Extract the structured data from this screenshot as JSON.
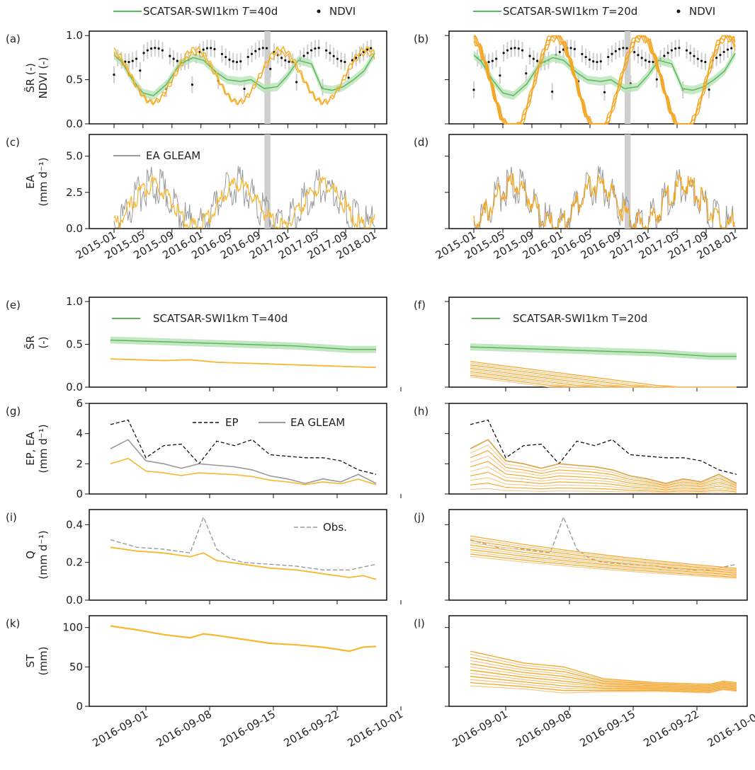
{
  "colors": {
    "green": "#5cb85c",
    "green_band": "#b9e3b9",
    "orange": "#f5a623",
    "yellow": "#f7b72e",
    "light_orange": "#f7c98a",
    "gray": "#9a9a9a",
    "gray_light": "#cfcfcf",
    "black": "#111111"
  },
  "legends": {
    "top_left": {
      "line_label": "SCATSAR-SWI1km",
      "T_label": "T",
      "T_value": "=40d",
      "dot_label": "NDVI"
    },
    "top_right": {
      "line_label": "SCATSAR-SWI1km",
      "T_label": "T",
      "T_value": "=20d",
      "dot_label": "NDVI"
    },
    "e_legend": "SCATSAR-SWI1km T=40d",
    "f_legend": "SCATSAR-SWI1km T=20d",
    "c_legend": "E_A GLEAM",
    "g_ep": "E_P",
    "g_ea": "E_A GLEAM",
    "i_obs": "Obs."
  },
  "panel_labels": [
    "(a)",
    "(b)",
    "(c)",
    "(d)",
    "(e)",
    "(f)",
    "(g)",
    "(h)",
    "(i)",
    "(j)",
    "(k)",
    "(l)"
  ],
  "y_axis_labels": {
    "a": [
      "S̄R (-)",
      "NDVI (-)"
    ],
    "c": [
      "EA",
      "(mm d⁻¹)"
    ],
    "e": [
      "S̄R",
      "(-)"
    ],
    "g": [
      "EP, EA",
      "(mm d⁻¹)"
    ],
    "i": [
      "Q",
      "(mm d⁻¹)"
    ],
    "k": [
      "ST",
      "(mm)"
    ]
  },
  "chart_data": [
    {
      "panel": "(a)",
      "type": "line",
      "x_ticks": [
        "2015-01",
        "2015-05",
        "2015-09",
        "2016-01",
        "2016-05",
        "2016-09",
        "2017-01",
        "2017-05",
        "2017-09",
        "2018-01"
      ],
      "ylim": [
        0,
        1.05
      ],
      "y_ticks": [
        "0.0",
        "0.5",
        "1.0"
      ],
      "series": [
        {
          "name": "SCATSAR-SWI1km T=40d",
          "x": [
            0,
            0.3,
            0.7,
            1.1,
            1.5,
            2.0,
            2.5,
            3.0,
            3.4,
            3.9,
            4.3,
            4.8,
            5.2,
            5.7,
            6.2,
            6.6,
            7.0,
            7.5,
            7.9,
            8.3,
            8.7,
            9.1,
            9.5,
            9.9
          ],
          "values": [
            0.78,
            0.7,
            0.5,
            0.35,
            0.32,
            0.45,
            0.68,
            0.75,
            0.72,
            0.58,
            0.5,
            0.48,
            0.5,
            0.4,
            0.42,
            0.55,
            0.72,
            0.68,
            0.4,
            0.38,
            0.42,
            0.5,
            0.6,
            0.8
          ]
        }
      ]
    },
    {
      "panel": "(e)",
      "type": "line",
      "x_ticks": [
        "2016-09-01",
        "2016-09-08",
        "2016-09-15",
        "2016-09-22",
        "2016-10-01"
      ],
      "ylim": [
        0,
        1.05
      ],
      "y_ticks": [
        "0.0",
        "0.5",
        "1.0"
      ],
      "series": [
        {
          "name": "SCATSAR-SWI1km T=40d",
          "x": [
            0,
            1,
            2,
            3,
            4,
            5,
            6,
            7,
            8,
            9,
            10
          ],
          "values": [
            0.55,
            0.54,
            0.53,
            0.52,
            0.51,
            0.5,
            0.49,
            0.48,
            0.46,
            0.44,
            0.44
          ]
        }
      ]
    },
    {
      "panel": "(i)",
      "type": "line",
      "x_ticks": [
        "2016-09-01",
        "2016-09-08",
        "2016-09-15",
        "2016-09-22",
        "2016-10-01"
      ],
      "ylim": [
        0,
        0.48
      ],
      "y_ticks": [
        "0.0",
        "0.2",
        "0.4"
      ],
      "series": [
        {
          "name": "Obs.",
          "x": [
            0,
            1,
            2,
            3,
            3.5,
            4,
            4.5,
            5,
            6,
            7,
            8,
            9,
            10
          ],
          "values": [
            0.32,
            0.28,
            0.27,
            0.25,
            0.44,
            0.27,
            0.22,
            0.2,
            0.19,
            0.18,
            0.16,
            0.16,
            0.19
          ]
        }
      ]
    },
    {
      "panel": "(k)",
      "type": "line",
      "x_ticks": [
        "2016-09-01",
        "2016-09-08",
        "2016-09-15",
        "2016-09-22",
        "2016-10-01"
      ],
      "ylim": [
        0,
        115
      ],
      "y_ticks": [
        "0",
        "50",
        "100"
      ],
      "series": [
        {
          "x": [
            0,
            1,
            2,
            3,
            3.5,
            4,
            5,
            6,
            7,
            8,
            9,
            9.5,
            10
          ],
          "values": [
            102,
            97,
            91,
            87,
            92,
            90,
            85,
            80,
            78,
            75,
            70,
            75,
            76
          ]
        }
      ]
    }
  ]
}
